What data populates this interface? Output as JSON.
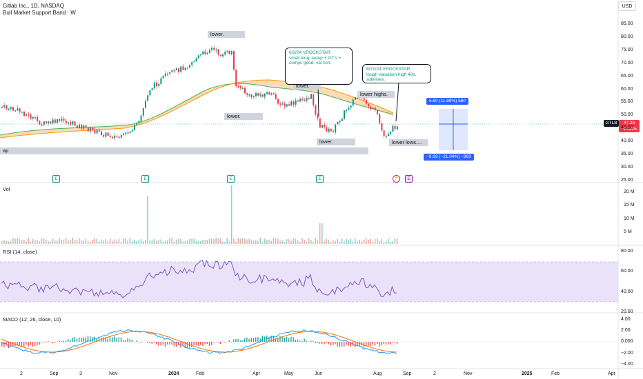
{
  "header": {
    "symbol_title": "Gitlab Inc., 1D, NASDAQ",
    "indicator_title": "Bull Market Support Band · W",
    "currency_button": "USD"
  },
  "price_axis": [
    "85.00",
    "80.00",
    "75.00",
    "70.00",
    "65.00",
    "60.00",
    "55.00",
    "50.00",
    "45.00",
    "40.00",
    "35.00",
    "30.00",
    "25.00"
  ],
  "volume_axis": [
    "20 M",
    "15 M",
    "10 M",
    "5 M"
  ],
  "rsi_axis": [
    "80.00",
    "60.00",
    "40.00",
    "20.00"
  ],
  "macd_axis": [
    "4.00",
    "2.00",
    "0.000",
    "−2.00",
    "−4.00"
  ],
  "time_axis": [
    "2",
    "Sep",
    "3",
    "Nov",
    "2024",
    "Feb",
    "Apr",
    "May",
    "Jun",
    "Aug",
    "Sep",
    "2",
    "Nov",
    "2025",
    "Feb",
    "Apr"
  ],
  "panes": {
    "volume_label": "Vol",
    "rsi_label": "RSI (14, close)",
    "macd_label": "MACD (12, 26, close, 10)"
  },
  "annotations": {
    "lower_1": "lower.",
    "lower_2": "lower.",
    "lower_3": "lower.",
    "lower_4": "lower.",
    "lower_highs": "lower highs.",
    "lower_lows": "lower lows....",
    "band_left": "ap",
    "callout_1": "6/3/24 VROCKSTAR\nsmall long. setup + GT's +\ncomps good. val rich.",
    "callout_2": "8/21/24 VROCKSTAR\ntough valuation high 40s.\nsidelines."
  },
  "measure": {
    "upper": "5.60 (11.89%) 560",
    "lower": "−9.93 (−21.04%) −993"
  },
  "price": {
    "ticker": "GTLB",
    "last": "47.26",
    "change": "−6.84%"
  },
  "events": {
    "earnings": "E",
    "dividend": "⚡"
  },
  "colors": {
    "up": "#089981",
    "down": "#f23645",
    "rsi": "#7e57c2",
    "macd": "#2196f3",
    "signal": "#ff6d00",
    "accent": "#2962ff"
  }
}
